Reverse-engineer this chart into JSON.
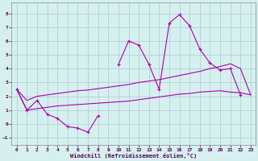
{
  "xlabel": "Windchill (Refroidissement éolien,°C)",
  "background_color": "#d6f0f0",
  "grid_color": "#aacccc",
  "line_color": "#aa00aa",
  "x_all": [
    0,
    1,
    2,
    3,
    4,
    5,
    6,
    7,
    8,
    9,
    10,
    11,
    12,
    13,
    14,
    15,
    16,
    17,
    18,
    19,
    20,
    21,
    22,
    23
  ],
  "y_main": [
    2.5,
    1.0,
    1.7,
    0.7,
    0.4,
    -0.2,
    -0.3,
    -0.6,
    0.6,
    null,
    4.3,
    6.0,
    5.7,
    4.3,
    2.5,
    7.3,
    7.9,
    7.1,
    5.4,
    4.4,
    3.9,
    4.0,
    2.1,
    null
  ],
  "x_upper": [
    0,
    1,
    2,
    3,
    4,
    5,
    6,
    7,
    8,
    9,
    10,
    11,
    12,
    13,
    14,
    15,
    16,
    17,
    18,
    19,
    20,
    21,
    22,
    23
  ],
  "y_upper": [
    2.5,
    1.7,
    2.0,
    2.1,
    2.2,
    2.3,
    2.4,
    2.45,
    2.55,
    2.65,
    2.75,
    2.85,
    3.0,
    3.1,
    3.2,
    3.35,
    3.5,
    3.65,
    3.8,
    4.0,
    4.15,
    4.35,
    4.0,
    2.1
  ],
  "y_lower": [
    2.5,
    1.0,
    1.1,
    1.2,
    1.3,
    1.35,
    1.4,
    1.45,
    1.5,
    1.55,
    1.6,
    1.65,
    1.75,
    1.85,
    1.95,
    2.05,
    2.15,
    2.2,
    2.3,
    2.35,
    2.4,
    2.3,
    2.25,
    2.1
  ],
  "ylim": [
    -1.5,
    8.8
  ],
  "yticks": [
    -1,
    0,
    1,
    2,
    3,
    4,
    5,
    6,
    7,
    8
  ],
  "xticks": [
    0,
    1,
    2,
    3,
    4,
    5,
    6,
    7,
    8,
    9,
    10,
    11,
    12,
    13,
    14,
    15,
    16,
    17,
    18,
    19,
    20,
    21,
    22,
    23
  ],
  "xticklabels": [
    "0",
    "1",
    "2",
    "3",
    "4",
    "5",
    "6",
    "7",
    "8",
    "9",
    "10",
    "11",
    "12",
    "13",
    "14",
    "15",
    "16",
    "17",
    "18",
    "19",
    "20",
    "21",
    "22",
    "23"
  ]
}
